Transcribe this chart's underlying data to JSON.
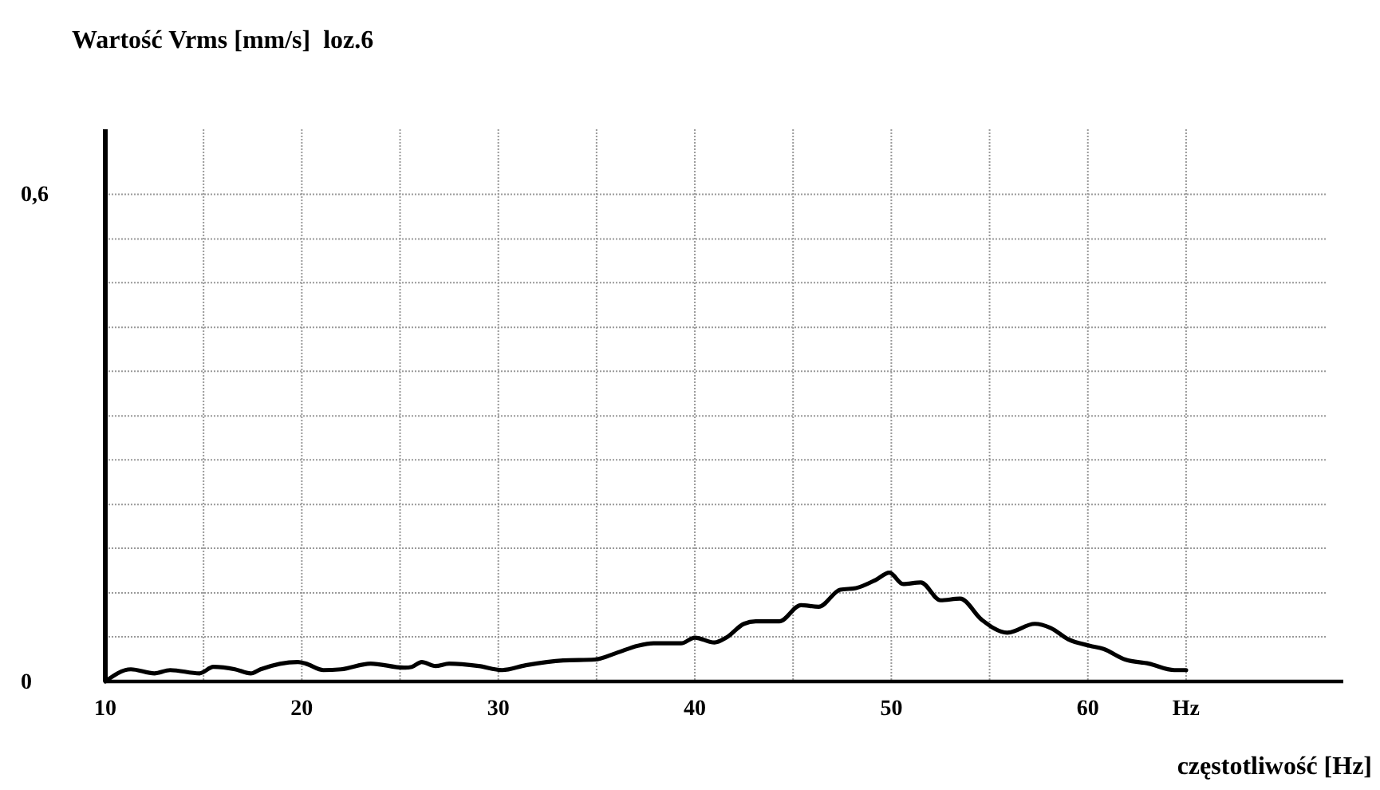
{
  "chart_data": {
    "type": "line",
    "title": "Wartość Vrms [mm/s]  loz.6",
    "xlabel": "częstotliwość [Hz]",
    "x": [
      10,
      11.3,
      12.5,
      13.3,
      14.8,
      15.5,
      16.6,
      17.4,
      17.9,
      19.8,
      20.2,
      21.1,
      22,
      23.5,
      25.2,
      25.6,
      26.1,
      26.8,
      27.5,
      29,
      30.2,
      31.4,
      33.3,
      34.9,
      36,
      37.1,
      37.9,
      39.3,
      40,
      41,
      41.6,
      42.5,
      43.1,
      44.3,
      45.4,
      46.3,
      47.4,
      48.2,
      49.2,
      49.9,
      50.6,
      51.5,
      52.5,
      53.5,
      54.6,
      55.9,
      57.3,
      58.1,
      59,
      60.1,
      60.8,
      61.9,
      63.1,
      64.4,
      65
    ],
    "values": [
      0,
      0.015,
      0.01,
      0.014,
      0.01,
      0.018,
      0.015,
      0.01,
      0.015,
      0.024,
      0.022,
      0.014,
      0.015,
      0.022,
      0.017,
      0.018,
      0.024,
      0.019,
      0.022,
      0.019,
      0.014,
      0.02,
      0.026,
      0.027,
      0.035,
      0.044,
      0.047,
      0.047,
      0.054,
      0.048,
      0.054,
      0.071,
      0.074,
      0.074,
      0.094,
      0.092,
      0.113,
      0.115,
      0.125,
      0.134,
      0.12,
      0.122,
      0.1,
      0.102,
      0.076,
      0.06,
      0.071,
      0.066,
      0.052,
      0.044,
      0.04,
      0.027,
      0.022,
      0.014,
      0.014
    ],
    "color": "#000000",
    "xlim": [
      10,
      73
    ],
    "ylim": [
      0,
      0.68
    ],
    "xticks": [
      10,
      {
        "value": 15,
        "label": null
      },
      20,
      {
        "value": 25,
        "label": null
      },
      30,
      {
        "value": 35,
        "label": null
      },
      40,
      {
        "value": 45,
        "label": null
      },
      50,
      {
        "value": 55,
        "label": null
      },
      60,
      {
        "value": 65,
        "label": "Hz"
      }
    ],
    "yticks": [
      0,
      {
        "value": 0.055,
        "label": null
      },
      {
        "value": 0.109,
        "label": null
      },
      {
        "value": 0.164,
        "label": null
      },
      {
        "value": 0.218,
        "label": null
      },
      {
        "value": 0.273,
        "label": null
      },
      {
        "value": 0.327,
        "label": null
      },
      {
        "value": 0.382,
        "label": null
      },
      {
        "value": 0.436,
        "label": null
      },
      {
        "value": 0.491,
        "label": null
      },
      {
        "value": 0.545,
        "label": null
      },
      {
        "value": 0.6,
        "label": "0,6"
      }
    ],
    "grid": true
  }
}
